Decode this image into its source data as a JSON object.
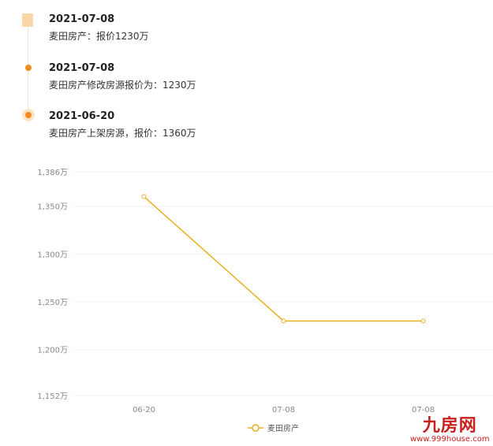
{
  "timeline": [
    {
      "date": "2021-07-08",
      "text": "麦田房产：报价1230万",
      "icon": "building-icon"
    },
    {
      "date": "2021-07-08",
      "text": "麦田房产修改房源报价为：1230万",
      "icon": "dot-icon"
    },
    {
      "date": "2021-06-20",
      "text": "麦田房产上架房源，报价：1360万",
      "icon": "dot-highlight-icon"
    }
  ],
  "chart_data": {
    "type": "line",
    "categories": [
      "06-20",
      "07-08",
      "07-08"
    ],
    "series": [
      {
        "name": "麦田房产",
        "values": [
          1360,
          1230,
          1230
        ],
        "color": "#e8b020"
      }
    ],
    "ylim": [
      1152,
      1386
    ],
    "yticks": [
      "1,386万",
      "1,350万",
      "1,300万",
      "1,250万",
      "1,200万",
      "1,152万"
    ],
    "ytick_values": [
      1386,
      1350,
      1300,
      1250,
      1200,
      1152
    ],
    "grid": true,
    "legend": "bottom"
  },
  "watermark": {
    "logo": "九房网",
    "url": "www.999house.com"
  }
}
